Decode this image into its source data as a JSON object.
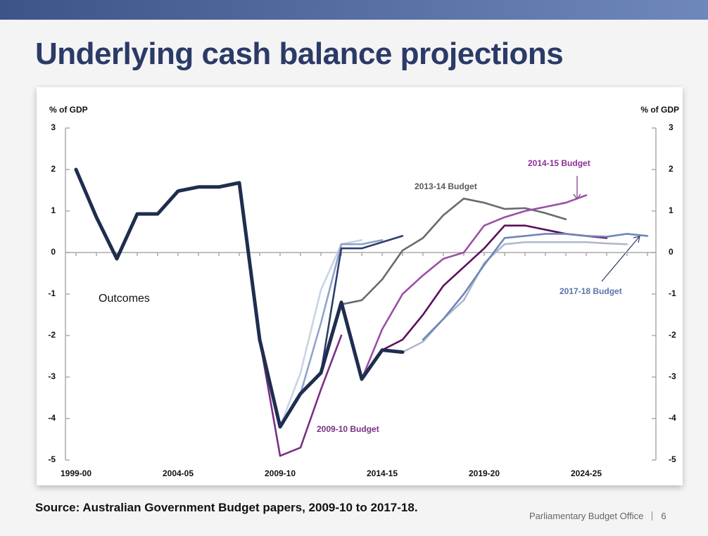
{
  "header": {
    "title": "Underlying cash balance projections"
  },
  "footer": {
    "source": "Source: Australian Government Budget papers, 2009-10 to 2017-18.",
    "organisation": "Parliamentary Budget Office",
    "page": "6"
  },
  "chart_data": {
    "type": "line",
    "y_label": "% of GDP",
    "y2_label": "% of GDP",
    "categories": [
      "1999-00",
      null,
      null,
      null,
      null,
      "2004-05",
      null,
      null,
      null,
      null,
      "2009-10",
      null,
      null,
      null,
      null,
      "2014-15",
      null,
      null,
      null,
      null,
      "2019-20",
      null,
      null,
      null,
      null,
      "2024-25",
      null,
      null,
      null
    ],
    "ylim": [
      -5,
      3
    ],
    "yticks": [
      -5,
      -4,
      -3,
      -2,
      -1,
      0,
      1,
      2,
      3
    ],
    "y2lim": [
      -5,
      3
    ],
    "y2ticks": [
      -5,
      -4,
      -3,
      -2,
      -1,
      0,
      1,
      2,
      3
    ],
    "series": [
      {
        "color": "#c9d3e6",
        "values": [
          null,
          null,
          null,
          null,
          null,
          null,
          null,
          null,
          null,
          null,
          -4.2,
          -2.9,
          -0.9,
          0.2,
          0.3,
          null,
          null,
          null,
          null,
          null,
          null,
          null,
          null,
          null,
          null,
          null,
          null,
          null,
          null
        ]
      },
      {
        "color": "#8ea4cc",
        "values": [
          null,
          null,
          null,
          null,
          null,
          null,
          null,
          null,
          null,
          null,
          null,
          -3.4,
          -1.7,
          0.2,
          0.2,
          0.3,
          null,
          null,
          null,
          null,
          null,
          null,
          null,
          null,
          null,
          null,
          null,
          null,
          null
        ]
      },
      {
        "color": "#2f3f6b",
        "values": [
          null,
          null,
          null,
          null,
          null,
          null,
          null,
          null,
          null,
          null,
          null,
          null,
          -2.9,
          0.1,
          0.1,
          0.25,
          0.4,
          null,
          null,
          null,
          null,
          null,
          null,
          null,
          null,
          null,
          null,
          null,
          null
        ]
      },
      {
        "name": "2009-10 Budget",
        "color": "#7b2f86",
        "values": [
          null,
          null,
          null,
          null,
          null,
          null,
          null,
          null,
          null,
          -2.1,
          -4.9,
          -4.7,
          -3.3,
          -2.0,
          null,
          null,
          null,
          null,
          null,
          null,
          null,
          null,
          null,
          null,
          null,
          null,
          null,
          null,
          null
        ]
      },
      {
        "name": "2013-14 Budget",
        "color": "#666b70",
        "values": [
          null,
          null,
          null,
          null,
          null,
          null,
          null,
          null,
          null,
          null,
          null,
          null,
          null,
          -1.25,
          -1.15,
          -0.65,
          0.05,
          0.35,
          0.9,
          1.3,
          1.2,
          1.05,
          1.07,
          0.95,
          0.8,
          null,
          null,
          null,
          null
        ]
      },
      {
        "name": "2014-15 Budget",
        "color": "#9b4fa5",
        "values": [
          null,
          null,
          null,
          null,
          null,
          null,
          null,
          null,
          null,
          null,
          null,
          null,
          null,
          null,
          -3.05,
          -1.85,
          -1.0,
          -0.55,
          -0.15,
          0.0,
          0.65,
          0.85,
          1.0,
          1.1,
          1.2,
          1.38,
          null,
          null,
          null
        ]
      },
      {
        "color": "#b0b8c8",
        "values": [
          null,
          null,
          null,
          null,
          null,
          null,
          null,
          null,
          null,
          null,
          null,
          null,
          null,
          null,
          null,
          null,
          -2.4,
          -2.15,
          -1.6,
          -1.15,
          -0.25,
          0.2,
          0.25,
          0.25,
          0.25,
          0.25,
          0.22,
          0.2,
          null
        ]
      },
      {
        "color": "#5c0f5e",
        "values": [
          null,
          null,
          null,
          null,
          null,
          null,
          null,
          null,
          null,
          null,
          null,
          null,
          null,
          null,
          null,
          -2.35,
          -2.1,
          -1.5,
          -0.8,
          -0.35,
          0.1,
          0.65,
          0.65,
          0.55,
          0.45,
          0.4,
          0.35,
          null,
          null
        ]
      },
      {
        "name": "2017-18 Budget",
        "color": "#6e86b8",
        "values": [
          null,
          null,
          null,
          null,
          null,
          null,
          null,
          null,
          null,
          null,
          null,
          null,
          null,
          null,
          null,
          null,
          null,
          -2.1,
          -1.6,
          -1.0,
          -0.3,
          0.35,
          0.4,
          0.45,
          0.45,
          0.4,
          0.38,
          0.45,
          0.4
        ]
      },
      {
        "name": "Outcomes",
        "color": "#1f2d4f",
        "values": [
          2.0,
          0.85,
          -0.15,
          0.93,
          0.93,
          1.48,
          1.58,
          1.58,
          1.68,
          -2.1,
          -4.2,
          -3.4,
          -2.9,
          -1.2,
          -3.05,
          -2.35,
          -2.4,
          null,
          null,
          null,
          null,
          null,
          null,
          null,
          null,
          null,
          null,
          null,
          null
        ]
      }
    ]
  }
}
